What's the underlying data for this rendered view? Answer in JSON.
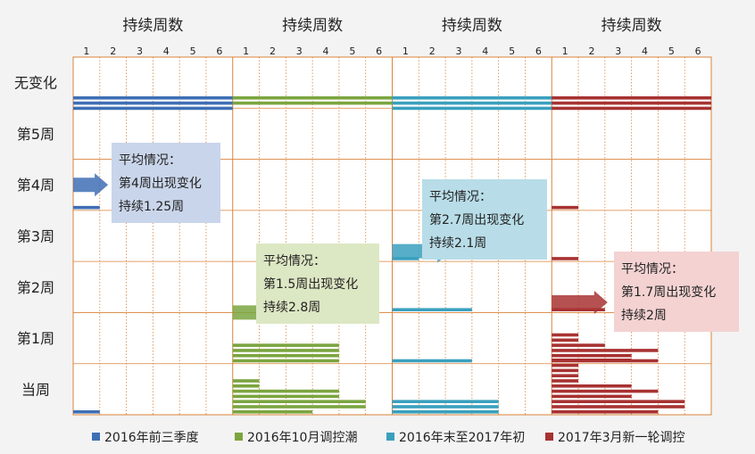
{
  "chart_data": {
    "type": "gantt-bars",
    "panel_header": "持续周数",
    "x_ticks": [
      "1",
      "2",
      "3",
      "4",
      "5",
      "6"
    ],
    "y_categories": [
      "当周",
      "第1周",
      "第2周",
      "第3周",
      "第4周",
      "第5周",
      "无变化"
    ],
    "grid": true,
    "series": [
      {
        "name": "2016年前三季度",
        "color": "#3f6fb5",
        "bars": [
          {
            "start_week": 0,
            "duration": 1
          },
          {
            "start_week": 4,
            "duration": 1
          },
          {
            "start_week": 7,
            "duration": 6
          },
          {
            "start_week": 7,
            "duration": 6
          },
          {
            "start_week": 7,
            "duration": 6
          }
        ],
        "annotation": {
          "lines": [
            "平均情况：",
            "第4周出现变化",
            "持续1.25周"
          ],
          "color": "#c9d5ea"
        },
        "average_start": 4,
        "average_duration": 1.25
      },
      {
        "name": "2016年10月调控潮",
        "color": "#7ba540",
        "bars": [
          {
            "start_week": 0,
            "duration": 3
          },
          {
            "start_week": 0,
            "duration": 5
          },
          {
            "start_week": 0,
            "duration": 5
          },
          {
            "start_week": 0,
            "duration": 4
          },
          {
            "start_week": 0,
            "duration": 4
          },
          {
            "start_week": 0,
            "duration": 1
          },
          {
            "start_week": 0,
            "duration": 1
          },
          {
            "start_week": 1,
            "duration": 4
          },
          {
            "start_week": 1,
            "duration": 4
          },
          {
            "start_week": 1,
            "duration": 4
          },
          {
            "start_week": 1,
            "duration": 4
          },
          {
            "start_week": 7,
            "duration": 6
          },
          {
            "start_week": 7,
            "duration": 6
          }
        ],
        "annotation": {
          "lines": [
            "平均情况：",
            "第1.5周出现变化",
            "持续2.8周"
          ],
          "color": "#dce7c3"
        },
        "average_start": 1.5,
        "average_duration": 2.8
      },
      {
        "name": "2016年末至2017年初",
        "color": "#3aa0be",
        "bars": [
          {
            "start_week": 0,
            "duration": 4
          },
          {
            "start_week": 0,
            "duration": 4
          },
          {
            "start_week": 0,
            "duration": 4
          },
          {
            "start_week": 1,
            "duration": 3
          },
          {
            "start_week": 2,
            "duration": 3
          },
          {
            "start_week": 3,
            "duration": 1
          },
          {
            "start_week": 7,
            "duration": 6
          },
          {
            "start_week": 7,
            "duration": 6
          },
          {
            "start_week": 7,
            "duration": 6
          }
        ],
        "annotation": {
          "lines": [
            "平均情况：",
            "第2.7周出现变化",
            "持续2.1周"
          ],
          "color": "#b8dde8"
        },
        "average_start": 2.7,
        "average_duration": 2.1
      },
      {
        "name": "2017年3月新一轮调控",
        "color": "#a83232",
        "bars": [
          {
            "start_week": 0,
            "duration": 4
          },
          {
            "start_week": 0,
            "duration": 5
          },
          {
            "start_week": 0,
            "duration": 5
          },
          {
            "start_week": 0,
            "duration": 3
          },
          {
            "start_week": 0,
            "duration": 4
          },
          {
            "start_week": 0,
            "duration": 3
          },
          {
            "start_week": 0,
            "duration": 1
          },
          {
            "start_week": 0,
            "duration": 1
          },
          {
            "start_week": 0,
            "duration": 1
          },
          {
            "start_week": 0,
            "duration": 1
          },
          {
            "start_week": 0,
            "duration": 3
          },
          {
            "start_week": 1,
            "duration": 4
          },
          {
            "start_week": 1,
            "duration": 3
          },
          {
            "start_week": 1,
            "duration": 4
          },
          {
            "start_week": 1,
            "duration": 2
          },
          {
            "start_week": 1,
            "duration": 1
          },
          {
            "start_week": 1,
            "duration": 1
          },
          {
            "start_week": 2,
            "duration": 2
          },
          {
            "start_week": 3,
            "duration": 1
          },
          {
            "start_week": 4,
            "duration": 1
          },
          {
            "start_week": 7,
            "duration": 6
          },
          {
            "start_week": 7,
            "duration": 6
          },
          {
            "start_week": 7,
            "duration": 6
          }
        ],
        "annotation": {
          "lines": [
            "平均情况：",
            "第1.7周出现变化",
            "持续2周"
          ],
          "color": "#f4d2d2"
        },
        "average_start": 1.7,
        "average_duration": 2
      }
    ]
  }
}
